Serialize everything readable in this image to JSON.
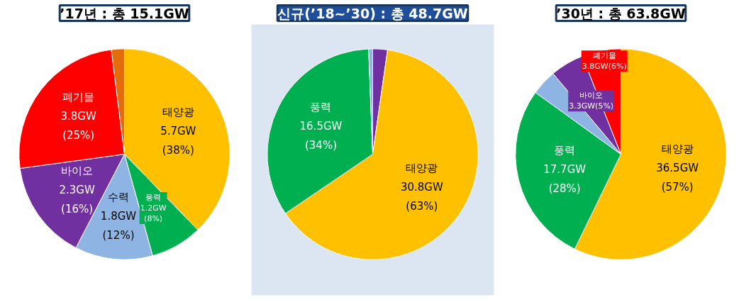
{
  "chart_data": [
    {
      "type": "pie",
      "title": "’17년 : 총 15.1GW",
      "categories": [
        "태양광",
        "풍력",
        "수력",
        "바이오",
        "폐기물",
        null
      ],
      "values": [
        5.7,
        1.2,
        1.8,
        2.3,
        3.8,
        0.3
      ],
      "colors": [
        "#ffc000",
        "#00b050",
        "#8eb4e3",
        "#7030a0",
        "#ff0000",
        "#e46c0a"
      ],
      "value_labels": [
        "5.7GW\n(38%)",
        "1.2GW\n(8%)",
        "1.8GW\n(12%)",
        "2.3GW\n(16%)",
        "3.8GW\n(25%)",
        null
      ]
    },
    {
      "type": "pie",
      "title": "신규(’18~’30) : 총 48.7GW",
      "categories": [
        null,
        "태양광",
        "풍력",
        null
      ],
      "values": [
        1.1,
        30.8,
        16.5,
        0.3
      ],
      "colors": [
        "#7030a0",
        "#ffc000",
        "#00b050",
        "#8eb4e3"
      ],
      "value_labels": [
        null,
        "30.8GW\n(63%)",
        "16.5GW\n(34%)",
        null
      ]
    },
    {
      "type": "pie",
      "title": "’30년 : 총 63.8GW",
      "categories": [
        "태양광",
        "풍력",
        null,
        "바이오",
        "폐기물"
      ],
      "values": [
        36.5,
        17.7,
        2.5,
        3.3,
        3.8
      ],
      "colors": [
        "#ffc000",
        "#00b050",
        "#8eb4e3",
        "#7030a0",
        "#ff0000"
      ],
      "value_labels": [
        "36.5GW\n(57%)",
        "17.7GW\n(28%)",
        null,
        "3.3GW(5%)",
        "3.8GW(6%)"
      ]
    }
  ]
}
